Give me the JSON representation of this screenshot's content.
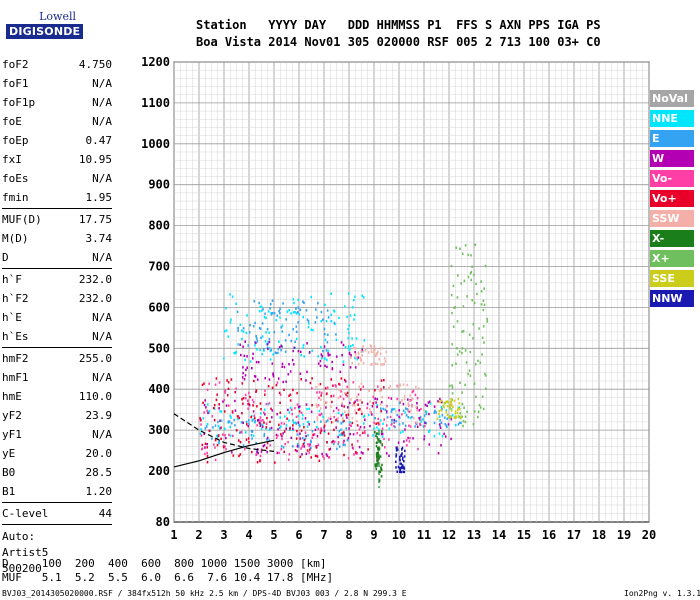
{
  "logo": {
    "top_text": "Lowell",
    "main_text": "DIGISONDE"
  },
  "header": {
    "line1": "Station   YYYY DAY   DDD HHMMSS P1  FFS S AXN PPS IGA PS",
    "line2": "Boa Vista 2014 Nov01 305 020000 RSF 005 2 713 100 03+ C0"
  },
  "params": {
    "group1": [
      {
        "name": "foF2",
        "value": "4.750"
      },
      {
        "name": "foF1",
        "value": "N/A"
      },
      {
        "name": "foF1p",
        "value": "N/A"
      },
      {
        "name": "foE",
        "value": "N/A"
      },
      {
        "name": "foEp",
        "value": "0.47"
      },
      {
        "name": "fxI",
        "value": "10.95"
      },
      {
        "name": "foEs",
        "value": "N/A"
      },
      {
        "name": "fmin",
        "value": "1.95"
      }
    ],
    "group2": [
      {
        "name": "MUF(D)",
        "value": "17.75"
      },
      {
        "name": "M(D)",
        "value": "3.74"
      },
      {
        "name": "D",
        "value": "N/A"
      }
    ],
    "group3": [
      {
        "name": "h`F",
        "value": "232.0"
      },
      {
        "name": "h`F2",
        "value": "232.0"
      },
      {
        "name": "h`E",
        "value": "N/A"
      },
      {
        "name": "h`Es",
        "value": "N/A"
      }
    ],
    "group4": [
      {
        "name": "hmF2",
        "value": "255.0"
      },
      {
        "name": "hmF1",
        "value": "N/A"
      },
      {
        "name": "hmE",
        "value": "110.0"
      },
      {
        "name": "yF2",
        "value": "23.9"
      },
      {
        "name": "yF1",
        "value": "N/A"
      },
      {
        "name": "yE",
        "value": "20.0"
      },
      {
        "name": "B0",
        "value": "28.5"
      },
      {
        "name": "B1",
        "value": "1.20"
      }
    ],
    "group5": [
      {
        "name": "C-level",
        "value": "44"
      }
    ],
    "auto_lines": [
      "Auto:",
      "Artist5",
      "500200"
    ]
  },
  "legend": [
    {
      "label": "NoVal",
      "color": "#a6a6a6"
    },
    {
      "label": "NNE",
      "color": "#00e6ff"
    },
    {
      "label": "E",
      "color": "#33a3f2"
    },
    {
      "label": "W",
      "color": "#b300b3"
    },
    {
      "label": "Vo-",
      "color": "#ff3fa6"
    },
    {
      "label": "Vo+",
      "color": "#e8002a"
    },
    {
      "label": "SSW",
      "color": "#f4b0a8"
    },
    {
      "label": "X-",
      "color": "#1a7f1a"
    },
    {
      "label": "X+",
      "color": "#6fbf5f"
    },
    {
      "label": "SSE",
      "color": "#cccc1a"
    },
    {
      "label": "NNW",
      "color": "#1a1ab3"
    }
  ],
  "bottom": {
    "d_row": "D     100  200  400  600  800 1000 1500 3000 [km]",
    "muf_row": "MUF   5.1  5.2  5.5  6.0  6.6  7.6 10.4 17.8 [MHz]"
  },
  "footer": {
    "left": "BVJ03_2014305020000.RSF / 384fx512h 50 kHz 2.5 km / DPS-4D BVJ03 003 / 2.8 N 299.3 E",
    "right": "Ion2Png v. 1.3.17"
  },
  "chart_data": {
    "type": "scatter",
    "title": "",
    "xlabel": "",
    "ylabel": "",
    "xlim": [
      1,
      20
    ],
    "ylim": [
      80,
      1200
    ],
    "x_ticks": [
      1,
      2,
      3,
      4,
      5,
      6,
      7,
      8,
      9,
      10,
      11,
      12,
      13,
      14,
      15,
      16,
      17,
      18,
      19,
      20
    ],
    "y_ticks": [
      80,
      200,
      300,
      400,
      500,
      600,
      700,
      800,
      900,
      1000,
      1100,
      1200
    ],
    "grid": true,
    "series": [
      {
        "name": "NNE",
        "color": "#00e6ff",
        "clusters": [
          {
            "x": [
              2.9,
              8.6
            ],
            "y": [
              470,
              640
            ]
          },
          {
            "x": [
              2.0,
              12.5
            ],
            "y": [
              285,
              370
            ]
          }
        ]
      },
      {
        "name": "E",
        "color": "#33a3f2",
        "clusters": [
          {
            "x": [
              2.2,
              8.0
            ],
            "y": [
              250,
              330
            ]
          },
          {
            "x": [
              9.0,
              12.5
            ],
            "y": [
              310,
              360
            ]
          },
          {
            "x": [
              3.5,
              7.5
            ],
            "y": [
              490,
              620
            ]
          }
        ]
      },
      {
        "name": "W",
        "color": "#b300b3",
        "clusters": [
          {
            "x": [
              2.0,
              12.2
            ],
            "y": [
              240,
              380
            ]
          },
          {
            "x": [
              3.5,
              8.5
            ],
            "y": [
              420,
              520
            ]
          }
        ]
      },
      {
        "name": "Vo-",
        "color": "#ff3fa6",
        "clusters": [
          {
            "x": [
              2.0,
              11.0
            ],
            "y": [
              230,
              420
            ]
          }
        ]
      },
      {
        "name": "Vo+",
        "color": "#e8002a",
        "clusters": [
          {
            "x": [
              2.0,
              9.5
            ],
            "y": [
              220,
              430
            ]
          }
        ]
      },
      {
        "name": "SSW",
        "color": "#f4b0a8",
        "clusters": [
          {
            "x": [
              8.0,
              9.5
            ],
            "y": [
              460,
              510
            ]
          },
          {
            "x": [
              6.5,
              11.0
            ],
            "y": [
              320,
              420
            ]
          }
        ]
      },
      {
        "name": "X-",
        "color": "#1a7f1a",
        "clusters": [
          {
            "x": [
              9.0,
              9.3
            ],
            "y": [
              180,
              300
            ]
          }
        ]
      },
      {
        "name": "X+",
        "color": "#6fbf5f",
        "clusters": [
          {
            "x": [
              12.0,
              13.5
            ],
            "y": [
              300,
              760
            ]
          }
        ]
      },
      {
        "name": "SSE",
        "color": "#cccc1a",
        "clusters": [
          {
            "x": [
              11.5,
              12.5
            ],
            "y": [
              330,
              380
            ]
          }
        ]
      },
      {
        "name": "NNW",
        "color": "#1a1ab3",
        "clusters": [
          {
            "x": [
              9.8,
              10.2
            ],
            "y": [
              200,
              260
            ]
          }
        ]
      }
    ],
    "curves": [
      {
        "style": "solid",
        "points": [
          [
            1,
            210
          ],
          [
            2,
            225
          ],
          [
            3,
            245
          ],
          [
            4,
            262
          ],
          [
            5,
            275
          ]
        ]
      },
      {
        "style": "dashed",
        "points": [
          [
            1,
            340
          ],
          [
            2,
            300
          ],
          [
            3,
            270
          ],
          [
            4,
            255
          ],
          [
            5,
            248
          ]
        ]
      },
      {
        "style": "dashed",
        "color": "#1a7f1a",
        "points": [
          [
            9.2,
            300
          ],
          [
            9.2,
            160
          ]
        ]
      }
    ]
  }
}
